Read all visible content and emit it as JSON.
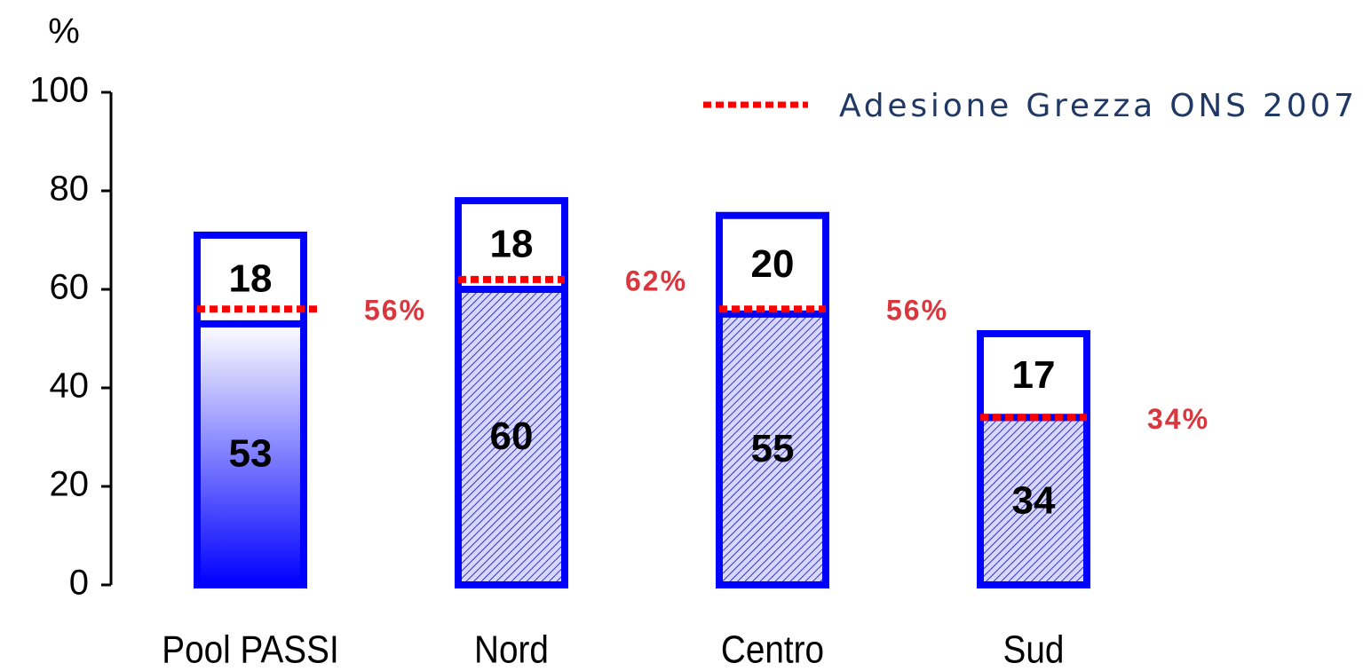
{
  "chart_data": {
    "type": "bar",
    "stacked": true,
    "y_label": "%",
    "categories": [
      "Pool PASSI",
      "Nord",
      "Centro",
      "Sud"
    ],
    "series": [
      {
        "color": "#0000ff",
        "values": [
          53,
          60,
          55,
          34
        ]
      },
      {
        "color": "#ffffff",
        "values": [
          18,
          18,
          20,
          17
        ]
      }
    ],
    "reference": {
      "name": "Adesione Grezza ONS 2007",
      "color": "#ff0000",
      "values": [
        56,
        62,
        56,
        34
      ],
      "value_labels": [
        "56%",
        "62%",
        "56%",
        "34%"
      ]
    },
    "ylim": [
      0,
      100
    ],
    "yticks": [
      0,
      20,
      40,
      60,
      80,
      100
    ],
    "legend": "upper right"
  }
}
